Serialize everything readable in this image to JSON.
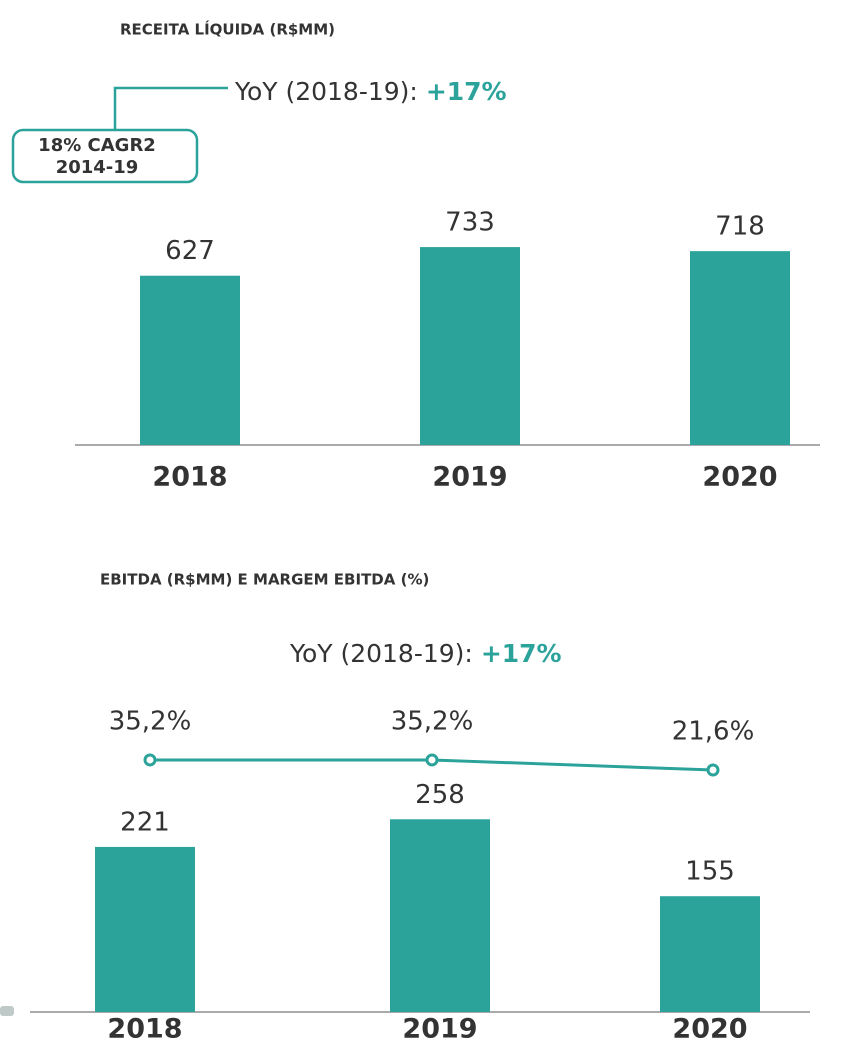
{
  "chart_data": [
    {
      "type": "bar",
      "title": "RECEITA LÍQUIDA (R$MM)",
      "categories": [
        "2018",
        "2019",
        "2020"
      ],
      "values": [
        627,
        733,
        718
      ],
      "color": "#2ba39a",
      "annotation": {
        "label": "YoY (2018-19):",
        "value": "+17%"
      },
      "callout": [
        "18% CAGR2",
        "2014-19"
      ]
    },
    {
      "type": "bar_line",
      "title": "EBITDA (R$MM) E MARGEM EBITDA (%)",
      "categories": [
        "2018",
        "2019",
        "2020"
      ],
      "values": [
        221,
        258,
        155
      ],
      "color": "#2ba39a",
      "annotation": {
        "label": "YoY (2018-19):",
        "value": "+17%"
      },
      "line": {
        "values": [
          35.2,
          35.2,
          21.6
        ],
        "value_labels": [
          "35,2%",
          "35,2%",
          "21,6%"
        ],
        "color": "#2ba39a"
      }
    }
  ]
}
